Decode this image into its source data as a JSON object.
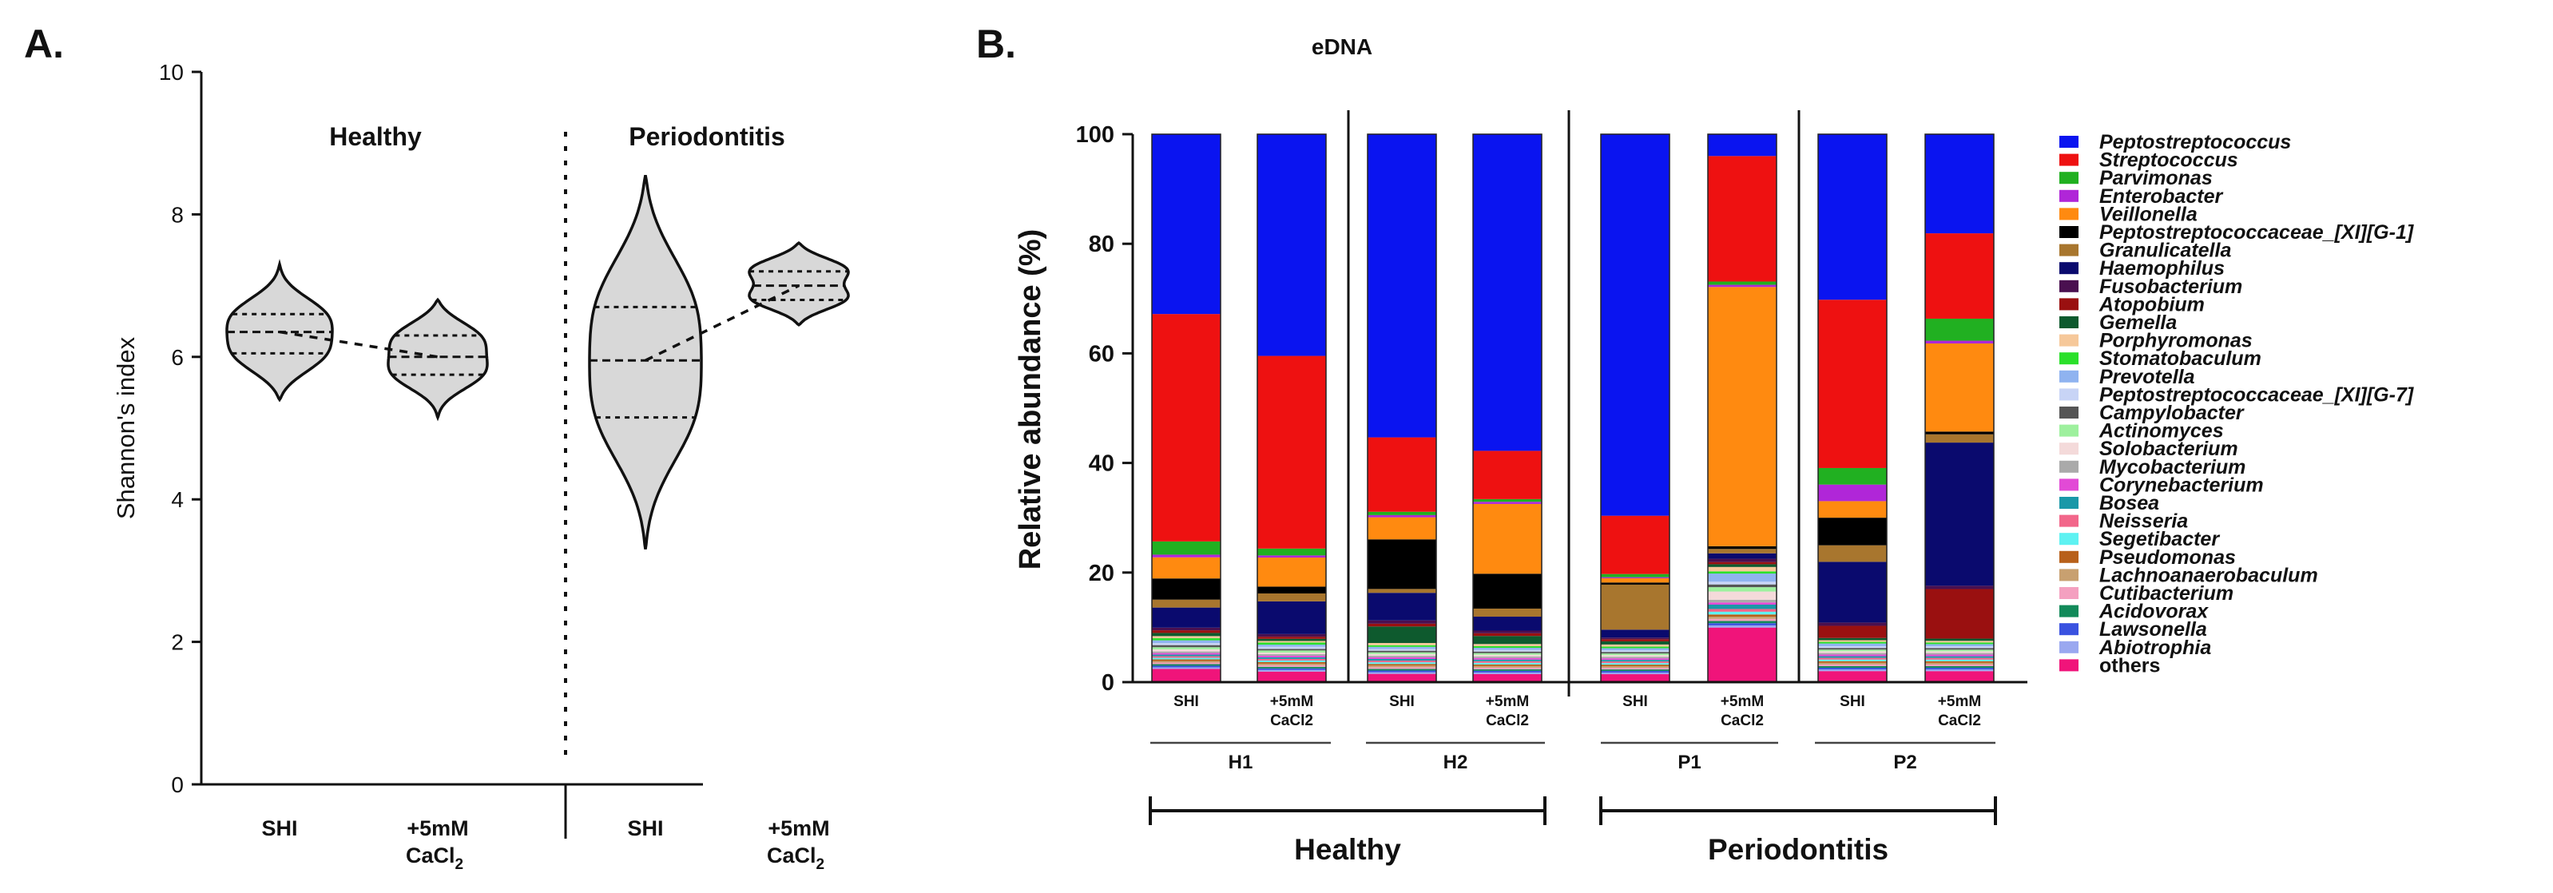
{
  "chart_data": [
    {
      "panel": "A.",
      "type": "violin",
      "ylabel": "Shannon's index",
      "ylim": [
        0,
        10
      ],
      "yticks": [
        "0",
        "2",
        "4",
        "6",
        "8",
        "10"
      ],
      "groups": [
        {
          "label": "Healthy"
        },
        {
          "label": "Periodontitis"
        }
      ],
      "categories": [
        {
          "line1": "SHI",
          "line2": ""
        },
        {
          "line1": "+5mM",
          "line2": "CaCl",
          "sub": "2"
        },
        {
          "line1": "SHI",
          "line2": ""
        },
        {
          "line1": "+5mM",
          "line2": "CaCl",
          "sub": "2"
        }
      ],
      "violins": [
        {
          "min": 5.4,
          "max": 7.3,
          "q1": 6.05,
          "median": 6.35,
          "q3": 6.6,
          "modes": [
            6.0,
            6.6
          ]
        },
        {
          "min": 5.15,
          "max": 6.8,
          "q1": 5.75,
          "median": 6.0,
          "q3": 6.3,
          "modes": [
            5.75,
            6.3
          ]
        },
        {
          "min": 3.3,
          "max": 8.55,
          "q1": 5.15,
          "median": 5.95,
          "q3": 6.7,
          "modes": [
            5.15,
            6.8
          ]
        },
        {
          "min": 6.45,
          "max": 7.6,
          "q1": 6.8,
          "median": 7.0,
          "q3": 7.2,
          "modes": [
            6.8,
            7.25
          ]
        }
      ]
    },
    {
      "panel": "B.",
      "type": "bar",
      "stacked": true,
      "title": "eDNA",
      "ylabel": "Relative abundance (%)",
      "ylim": [
        0,
        100
      ],
      "yticks": [
        "0",
        "20",
        "40",
        "60",
        "80",
        "100"
      ],
      "bar_labels": [
        {
          "line1": "SHI",
          "line2": ""
        },
        {
          "line1": "+5mM",
          "line2": "CaCl2"
        },
        {
          "line1": "SHI",
          "line2": ""
        },
        {
          "line1": "+5mM",
          "line2": "CaCl2"
        },
        {
          "line1": "SHI",
          "line2": ""
        },
        {
          "line1": "+5mM",
          "line2": "CaCl2"
        },
        {
          "line1": "SHI",
          "line2": ""
        },
        {
          "line1": "+5mM",
          "line2": "CaCl2"
        }
      ],
      "subgroups": [
        "H1",
        "H2",
        "P1",
        "P2"
      ],
      "groups": [
        "Healthy",
        "Periodontitis"
      ],
      "taxa": [
        {
          "name": "Peptostreptococcus",
          "color": "#0a14f0",
          "italic": true
        },
        {
          "name": "Streptococcus",
          "color": "#ee1111",
          "italic": true
        },
        {
          "name": "Parvimonas",
          "color": "#21b021",
          "italic": true
        },
        {
          "name": "Enterobacter",
          "color": "#b026d8",
          "italic": true
        },
        {
          "name": "Veillonella",
          "color": "#ff8a10",
          "italic": true
        },
        {
          "name": "Peptostreptococcaceae_[XI][G-1]",
          "color": "#000000",
          "italic": true
        },
        {
          "name": "Granulicatella",
          "color": "#a8762e",
          "italic": true
        },
        {
          "name": "Haemophilus",
          "color": "#0a0a6e",
          "italic": true
        },
        {
          "name": "Fusobacterium",
          "color": "#4a1050",
          "italic": true
        },
        {
          "name": "Atopobium",
          "color": "#9a1010",
          "italic": true
        },
        {
          "name": "Gemella",
          "color": "#0e5a2e",
          "italic": true
        },
        {
          "name": "Porphyromonas",
          "color": "#f6c89a",
          "italic": true
        },
        {
          "name": "Stomatobaculum",
          "color": "#2be02b",
          "italic": true
        },
        {
          "name": "Prevotella",
          "color": "#8fb3f0",
          "italic": true
        },
        {
          "name": "Peptostreptococcaceae_[XI][G-7]",
          "color": "#c8d4f6",
          "italic": true
        },
        {
          "name": "Campylobacter",
          "color": "#555555",
          "italic": true
        },
        {
          "name": "Actinomyces",
          "color": "#9ef09e",
          "italic": true
        },
        {
          "name": "Solobacterium",
          "color": "#f4dada",
          "italic": true
        },
        {
          "name": "Mycobacterium",
          "color": "#aaaaaa",
          "italic": true
        },
        {
          "name": "Corynebacterium",
          "color": "#e24ad6",
          "italic": true
        },
        {
          "name": "Bosea",
          "color": "#1a98a8",
          "italic": true
        },
        {
          "name": "Neisseria",
          "color": "#f2668a",
          "italic": true
        },
        {
          "name": "Segetibacter",
          "color": "#5ef2f2",
          "italic": true
        },
        {
          "name": "Pseudomonas",
          "color": "#b8601a",
          "italic": true
        },
        {
          "name": "Lachnoanaerobaculum",
          "color": "#c8a070",
          "italic": true
        },
        {
          "name": "Cutibacterium",
          "color": "#f4a0c0",
          "italic": true
        },
        {
          "name": "Acidovorax",
          "color": "#128a5a",
          "italic": true
        },
        {
          "name": "Lawsonella",
          "color": "#3a52e0",
          "italic": true
        },
        {
          "name": "Abiotrophia",
          "color": "#9aa8f0",
          "italic": true
        },
        {
          "name": "others",
          "color": "#f0147a",
          "italic": false
        }
      ],
      "series_values": [
        [
          34,
          42,
          55,
          59,
          72,
          4,
          30,
          18
        ],
        [
          43,
          36.5,
          13.5,
          9,
          11,
          23,
          30.5,
          15.5
        ],
        [
          2.5,
          1.3,
          0.6,
          0.5,
          0.6,
          0.6,
          3,
          4
        ],
        [
          0.5,
          0.4,
          0.4,
          0.4,
          0.2,
          0.4,
          3,
          0.5
        ],
        [
          4,
          5.5,
          4,
          13,
          0.8,
          47.5,
          3,
          16
        ],
        [
          4,
          1.3,
          9,
          6.5,
          0.4,
          0.5,
          5,
          0.5
        ],
        [
          1.5,
          1.5,
          0.7,
          1.5,
          8.5,
          0.8,
          3,
          1.5
        ],
        [
          3.8,
          6.2,
          5,
          2.6,
          1.5,
          1,
          11,
          26
        ],
        [
          0.5,
          0.5,
          0.6,
          0.5,
          0.3,
          0.6,
          0.6,
          0.6
        ],
        [
          0.5,
          0.4,
          0.5,
          0.5,
          0.4,
          0.4,
          2.2,
          9
        ],
        [
          0.6,
          0.4,
          3,
          1.5,
          0.6,
          0.5,
          0.4,
          0.4
        ],
        [
          0.4,
          0.3,
          0.4,
          0.4,
          0.4,
          0.8,
          0.3,
          0.3
        ],
        [
          0.4,
          0.4,
          0.3,
          0.3,
          0.3,
          0.4,
          0.3,
          0.3
        ],
        [
          0.5,
          0.4,
          0.4,
          0.4,
          0.4,
          1.5,
          0.5,
          0.4
        ],
        [
          0.4,
          0.4,
          0.3,
          0.3,
          0.3,
          0.5,
          0.3,
          0.3
        ],
        [
          0.4,
          0.3,
          0.3,
          0.3,
          0.3,
          0.5,
          0.3,
          0.3
        ],
        [
          0.4,
          0.4,
          0.3,
          0.3,
          0.3,
          0.8,
          0.3,
          0.3
        ],
        [
          0.4,
          0.3,
          0.3,
          0.3,
          0.3,
          1.5,
          0.3,
          0.3
        ],
        [
          0.3,
          0.3,
          0.3,
          0.3,
          0.3,
          0.5,
          0.3,
          0.3
        ],
        [
          0.3,
          0.3,
          0.3,
          0.3,
          0.3,
          0.4,
          0.3,
          0.3
        ],
        [
          0.3,
          0.3,
          0.3,
          0.3,
          0.3,
          0.8,
          0.3,
          0.3
        ],
        [
          0.3,
          0.3,
          0.3,
          0.3,
          0.3,
          0.5,
          0.3,
          0.3
        ],
        [
          0.3,
          0.3,
          0.3,
          0.3,
          0.3,
          0.5,
          0.3,
          0.3
        ],
        [
          0.3,
          0.3,
          0.3,
          0.3,
          0.3,
          0.4,
          0.3,
          0.3
        ],
        [
          0.3,
          0.3,
          0.3,
          0.3,
          0.3,
          0.4,
          0.3,
          0.3
        ],
        [
          0.3,
          0.3,
          0.3,
          0.3,
          0.3,
          0.4,
          0.3,
          0.3
        ],
        [
          0.3,
          0.3,
          0.3,
          0.3,
          0.3,
          0.4,
          0.3,
          0.3
        ],
        [
          0.3,
          0.3,
          0.3,
          0.3,
          0.3,
          0.4,
          0.3,
          0.3
        ],
        [
          0.3,
          0.3,
          0.3,
          0.3,
          0.3,
          0.4,
          0.3,
          0.3
        ],
        [
          2.5,
          2,
          1.5,
          1.5,
          1.5,
          10,
          2,
          2
        ]
      ],
      "legend_position": "right"
    }
  ]
}
